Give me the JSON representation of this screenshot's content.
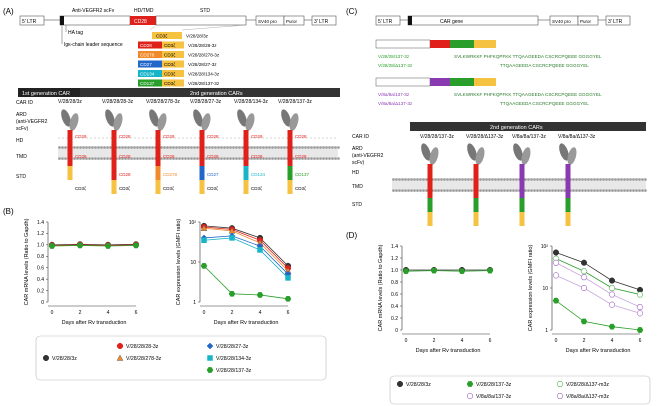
{
  "panels": {
    "A": {
      "label": "(A)",
      "construct": [
        "5' LTR",
        "Anti-VEGFR2 scFv",
        "HD/TMD",
        "CD28",
        "STD",
        "SV40 pro",
        "Puror",
        "3' LTR"
      ],
      "ha_tag": "HA tag",
      "leader": "Igκ-chain leader sequence",
      "variants": [
        {
          "dom": "CD3ζ",
          "name": "V/28/28/3z",
          "color": "#f5c242"
        },
        {
          "dom": "CD28",
          "name": "V/28/28/28-3z",
          "color": "#e0201b"
        },
        {
          "dom": "CD278",
          "name": "V/28/28/278-3z",
          "color": "#f08a2a"
        },
        {
          "dom": "CD27",
          "name": "V/28/28/27-3z",
          "color": "#2166c8"
        },
        {
          "dom": "CD134",
          "name": "V/28/28/134-3z",
          "color": "#18b5c9"
        },
        {
          "dom": "CD137",
          "name": "V/28/28/137-3z",
          "color": "#2a9e2a"
        }
      ],
      "gen1": "1st generation CAR",
      "gen2": "2nd generation CARs",
      "row_labels": [
        "CAR ID",
        "ARD",
        "(anti-VEGFR2",
        "scFv)",
        "HD",
        "TMD",
        "STD"
      ],
      "car_ids": [
        "V/28/28/3z",
        "V/28/28/28-3z",
        "V/28/28/278-3z",
        "V/28/28/27-3z",
        "V/28/28/134-3z",
        "V/28/28/137-3z"
      ]
    },
    "B": {
      "label": "(B)",
      "legend": [
        "V/28/28/3z",
        "V/28/28/28-3z",
        "V/28/28/278-3z",
        "V/28/28/27-3z",
        "V/28/28/134-3z",
        "V/28/28/137-3z"
      ]
    },
    "C": {
      "label": "(C)",
      "construct": [
        "5' LTR",
        "CAR gene",
        "SV40 pro",
        "Puror",
        "3' LTR"
      ],
      "seqs": [
        {
          "name": "V/28/28/137-3z",
          "seq": "SVLKWRKKF PHFKQPFKK TTQAAGEEDA CSCRCPQEEE GGGGYEL"
        },
        {
          "name": "V/28/28/Δ137-3z",
          "seq": "TTQAAGEEDA CSCRCPQEEE GGGGYEL"
        },
        {
          "name": "V/8a/8a/137-3z",
          "seq": "SVLKWRKKF PHFKQPFKK TTQAAGEEDA CSCRCPQEEE GGGGYEL"
        },
        {
          "name": "V/8a/8a/Δ137-3z",
          "seq": "TTQAAGEEDA CSCRCPQEEE GGGGYEL"
        }
      ],
      "gen2": "2nd generation CARs",
      "car_ids": [
        "V/28/28/137-3z",
        "V/28/28/Δ137-3z",
        "V/8a/8a/137-3z",
        "V/8a/8a/Δ137-3z"
      ]
    },
    "D": {
      "label": "(D)",
      "legend": [
        "V/28/28/3z",
        "V/28/28/137-3z",
        "V/28/28/Δ137-m3z",
        "V/8a/8a/137-3z",
        "V/8a/8a/Δ137-m3z"
      ]
    }
  },
  "chart_data": [
    {
      "type": "line",
      "panel": "B-left",
      "xlabel": "Days after Rv transduction",
      "ylabel": "CAR mRNA levels (Ratio to Gapdh)",
      "x": [
        0,
        2,
        4,
        6
      ],
      "ylim": [
        0,
        1.4
      ],
      "yticks": [
        "0",
        "0.2",
        "0.4",
        "0.6",
        "0.8",
        "1.0",
        "1.2",
        "1.4"
      ],
      "series": [
        {
          "name": "V/28/28/3z",
          "values": [
            1.0,
            1.01,
            1.0,
            1.01
          ]
        },
        {
          "name": "V/28/28/28-3z",
          "values": [
            0.99,
            1.0,
            0.99,
            1.0
          ]
        },
        {
          "name": "V/28/28/137-3z",
          "values": [
            0.98,
            0.99,
            0.98,
            0.99
          ]
        }
      ]
    },
    {
      "type": "line",
      "panel": "B-right",
      "yscale": "log",
      "xlabel": "Days after Rv transduction",
      "ylabel": "CAR expression levels (GMFI ratio)",
      "x": [
        0,
        2,
        4,
        6
      ],
      "ylim": [
        1,
        100
      ],
      "yticks": [
        "1",
        "10",
        "10²"
      ],
      "series": [
        {
          "name": "V/28/28/3z",
          "values": [
            80,
            70,
            40,
            8
          ]
        },
        {
          "name": "V/28/28/28-3z",
          "values": [
            75,
            65,
            35,
            7
          ]
        },
        {
          "name": "V/28/28/278-3z",
          "values": [
            70,
            60,
            30,
            6
          ]
        },
        {
          "name": "V/28/28/27-3z",
          "values": [
            40,
            45,
            25,
            5
          ]
        },
        {
          "name": "V/28/28/134-3z",
          "values": [
            35,
            40,
            20,
            4
          ]
        },
        {
          "name": "V/28/28/137-3z",
          "values": [
            8,
            1.6,
            1.5,
            1.2
          ]
        }
      ]
    },
    {
      "type": "line",
      "panel": "D-left",
      "xlabel": "Days after Rv transduction",
      "ylabel": "CAR mRNA levels (Ratio to Gapdh)",
      "x": [
        0,
        2,
        4,
        6
      ],
      "ylim": [
        0,
        1.4
      ],
      "yticks": [
        "0",
        "0.2",
        "0.4",
        "0.6",
        "0.8",
        "1.0",
        "1.2",
        "1.4"
      ],
      "series": [
        {
          "name": "V/28/28/3z",
          "values": [
            1.0,
            1.0,
            1.0,
            1.0
          ]
        },
        {
          "name": "V/28/28/137-3z",
          "values": [
            0.98,
            0.99,
            0.98,
            0.99
          ]
        }
      ]
    },
    {
      "type": "line",
      "panel": "D-right",
      "yscale": "log",
      "xlabel": "Days after Rv transduction",
      "ylabel": "CAR expression levels (GMFI ratio)",
      "x": [
        0,
        2,
        4,
        6
      ],
      "ylim": [
        1,
        100
      ],
      "yticks": [
        "1",
        "10",
        "10²"
      ],
      "series": [
        {
          "name": "V/28/28/3z",
          "values": [
            70,
            40,
            15,
            9
          ]
        },
        {
          "name": "V/28/28/137-3z",
          "values": [
            5,
            1.6,
            1.2,
            1.0
          ]
        },
        {
          "name": "V/28/28/Δ137-m3z",
          "values": [
            50,
            25,
            10,
            7
          ]
        },
        {
          "name": "V/8a/8a/137-3z",
          "values": [
            20,
            10,
            4,
            2.5
          ]
        },
        {
          "name": "V/8a/8a/Δ137-m3z",
          "values": [
            40,
            18,
            7,
            3.5
          ]
        }
      ]
    }
  ],
  "colors": {
    "CD28": "#e0201b",
    "CD3z": "#f5c242",
    "CD137": "#2a9e2a",
    "CD8a": "#8a3ab0",
    "gray": "#888888",
    "dark": "#333333"
  }
}
